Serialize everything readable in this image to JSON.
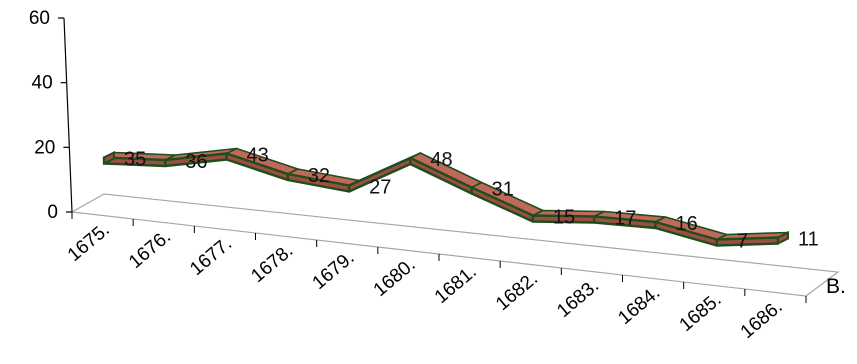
{
  "chart_data": {
    "type": "line",
    "style": "3d-ribbon",
    "categories": [
      "1675.",
      "1676.",
      "1677.",
      "1678.",
      "1679.",
      "1680.",
      "1681.",
      "1682.",
      "1683.",
      "1684.",
      "1685.",
      "1686."
    ],
    "values": [
      35,
      36,
      43,
      32,
      27,
      48,
      31,
      15,
      17,
      16,
      7,
      11
    ],
    "data_labels": [
      "35",
      "36",
      "43",
      "32",
      "27",
      "48",
      "31",
      "15",
      "17",
      "16",
      "7",
      "11"
    ],
    "y_ticks": [
      "0",
      "20",
      "40",
      "60"
    ],
    "ylim": [
      0,
      60
    ],
    "xlabel": "B.",
    "ylabel": "",
    "title": "",
    "grid": false,
    "legend": "none",
    "colors": {
      "ribbon_front": "#9b4f43",
      "ribbon_top": "#c0695a",
      "ribbon_edge": "#1f4d1c",
      "floor_edge": "#a6a6a6",
      "axis": "#000000"
    }
  }
}
